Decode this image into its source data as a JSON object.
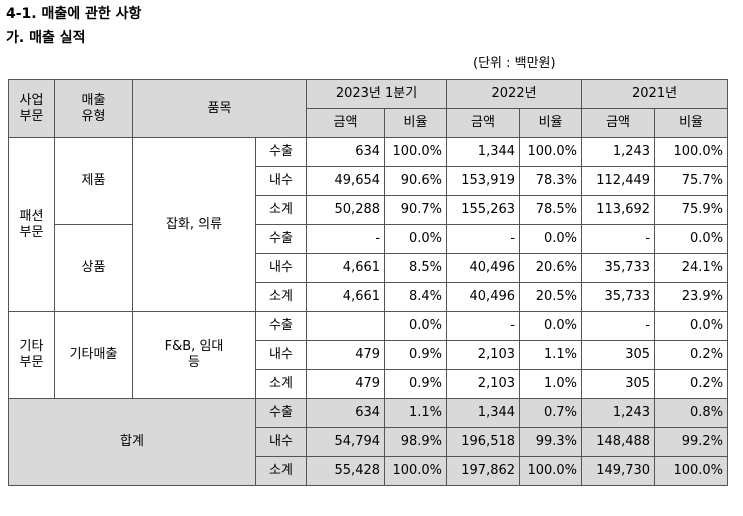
{
  "title": "4-1. 매출에 관한 사항",
  "subtitle": "가. 매출 실적",
  "unit": "(단위 : 백만원)",
  "header": {
    "division": "사업\n부문",
    "sales_type": "매출\n유형",
    "item": "품목",
    "periods": [
      "2023년 1분기",
      "2022년",
      "2021년"
    ],
    "amount": "금액",
    "ratio": "비율"
  },
  "groups": [
    {
      "division": "패션\n부문",
      "item": "잡화, 의류",
      "types": [
        {
          "name": "제품",
          "rows": [
            {
              "kind": "수출",
              "values": [
                "634",
                "100.0%",
                "1,344",
                "100.0%",
                "1,243",
                "100.0%"
              ]
            },
            {
              "kind": "내수",
              "values": [
                "49,654",
                "90.6%",
                "153,919",
                "78.3%",
                "112,449",
                "75.7%"
              ]
            },
            {
              "kind": "소계",
              "values": [
                "50,288",
                "90.7%",
                "155,263",
                "78.5%",
                "113,692",
                "75.9%"
              ]
            }
          ]
        },
        {
          "name": "상품",
          "rows": [
            {
              "kind": "수출",
              "values": [
                "-",
                "0.0%",
                "-",
                "0.0%",
                "-",
                "0.0%"
              ]
            },
            {
              "kind": "내수",
              "values": [
                "4,661",
                "8.5%",
                "40,496",
                "20.6%",
                "35,733",
                "24.1%"
              ]
            },
            {
              "kind": "소계",
              "values": [
                "4,661",
                "8.4%",
                "40,496",
                "20.5%",
                "35,733",
                "23.9%"
              ]
            }
          ]
        }
      ]
    },
    {
      "division": "기타\n부문",
      "item": "F&B, 임대\n등",
      "types": [
        {
          "name": "기타매출",
          "rows": [
            {
              "kind": "수출",
              "values": [
                "",
                "0.0%",
                "-",
                "0.0%",
                "-",
                "0.0%"
              ]
            },
            {
              "kind": "내수",
              "values": [
                "479",
                "0.9%",
                "2,103",
                "1.1%",
                "305",
                "0.2%"
              ]
            },
            {
              "kind": "소계",
              "values": [
                "479",
                "0.9%",
                "2,103",
                "1.0%",
                "305",
                "0.2%"
              ]
            }
          ]
        }
      ]
    }
  ],
  "total": {
    "label": "합계",
    "rows": [
      {
        "kind": "수출",
        "values": [
          "634",
          "1.1%",
          "1,344",
          "0.7%",
          "1,243",
          "0.8%"
        ]
      },
      {
        "kind": "내수",
        "values": [
          "54,794",
          "98.9%",
          "196,518",
          "99.3%",
          "148,488",
          "99.2%"
        ]
      },
      {
        "kind": "소계",
        "values": [
          "55,428",
          "100.0%",
          "197,862",
          "100.0%",
          "149,730",
          "100.0%"
        ]
      }
    ]
  }
}
